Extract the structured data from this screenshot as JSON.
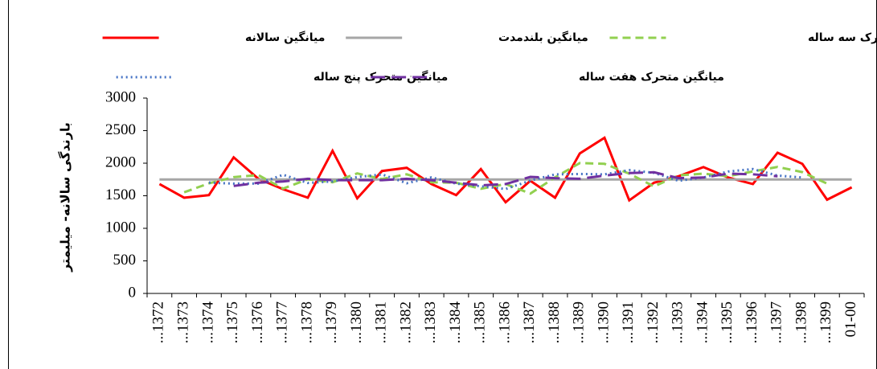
{
  "chart_data": {
    "type": "line",
    "y_label": "بارندگی سالانه- میلیمتر",
    "categories": [
      "...1372",
      "...1373",
      "...1374",
      "...1375",
      "...1376",
      "...1377",
      "...1378",
      "...1379",
      "...1380",
      "...1381",
      "...1382",
      "...1383",
      "...1384",
      "...1385",
      "...1386",
      "...1387",
      "...1388",
      "...1389",
      "...1390",
      "...1391",
      "...1392",
      "...1393",
      "...1394",
      "...1395",
      "...1396",
      "...1397",
      "...1398",
      "...1399",
      "01-00"
    ],
    "ylim": [
      0,
      3000
    ],
    "yticks": [
      0,
      500,
      1000,
      1500,
      2000,
      2500,
      3000
    ],
    "grid": false,
    "series": [
      {
        "name": "میانگین سالانه",
        "color": "#ff0000",
        "style": "solid",
        "values": [
          1680,
          1470,
          1510,
          2090,
          1760,
          1600,
          1470,
          2190,
          1460,
          1880,
          1930,
          1680,
          1510,
          1910,
          1400,
          1730,
          1470,
          2150,
          2390,
          1430,
          1700,
          1800,
          1940,
          1780,
          1680,
          2160,
          1990,
          1440,
          1630
        ]
      },
      {
        "name": "میانگین بلندمدت",
        "color": "#a6a6a6",
        "style": "solid",
        "values": [
          1750,
          1750,
          1750,
          1750,
          1750,
          1750,
          1750,
          1750,
          1750,
          1750,
          1750,
          1750,
          1750,
          1750,
          1750,
          1750,
          1750,
          1750,
          1750,
          1750,
          1750,
          1750,
          1750,
          1750,
          1750,
          1750,
          1750,
          1750,
          1750
        ]
      },
      {
        "name": "میانگین متحرک سه ساله",
        "color": "#92d050",
        "style": "dashed",
        "values": [
          null,
          1553,
          1690,
          1787,
          1817,
          1610,
          1753,
          1707,
          1843,
          1757,
          1830,
          1707,
          1700,
          1607,
          1680,
          1533,
          1783,
          2003,
          1990,
          1840,
          1643,
          1813,
          1840,
          1800,
          1873,
          1943,
          1863,
          1687,
          null
        ]
      },
      {
        "name": "میانگین متحرک پنج ساله",
        "color": "#4472c4",
        "style": "dotted",
        "values": [
          null,
          null,
          1702,
          1686,
          1686,
          1822,
          1696,
          1720,
          1786,
          1828,
          1692,
          1782,
          1686,
          1646,
          1604,
          1732,
          1828,
          1834,
          1828,
          1894,
          1852,
          1730,
          1780,
          1872,
          1910,
          1810,
          1780,
          null,
          null
        ]
      },
      {
        "name": "میانگین متحرک هفت ساله",
        "color": "#7030a0",
        "style": "longdash",
        "values": [
          null,
          null,
          null,
          1650,
          1700,
          1720,
          1760,
          1740,
          1740,
          1740,
          1760,
          1740,
          1700,
          1660,
          1680,
          1790,
          1770,
          1760,
          1810,
          1850,
          1860,
          1770,
          1780,
          1840,
          1830,
          1800,
          null,
          null,
          null
        ]
      }
    ]
  }
}
